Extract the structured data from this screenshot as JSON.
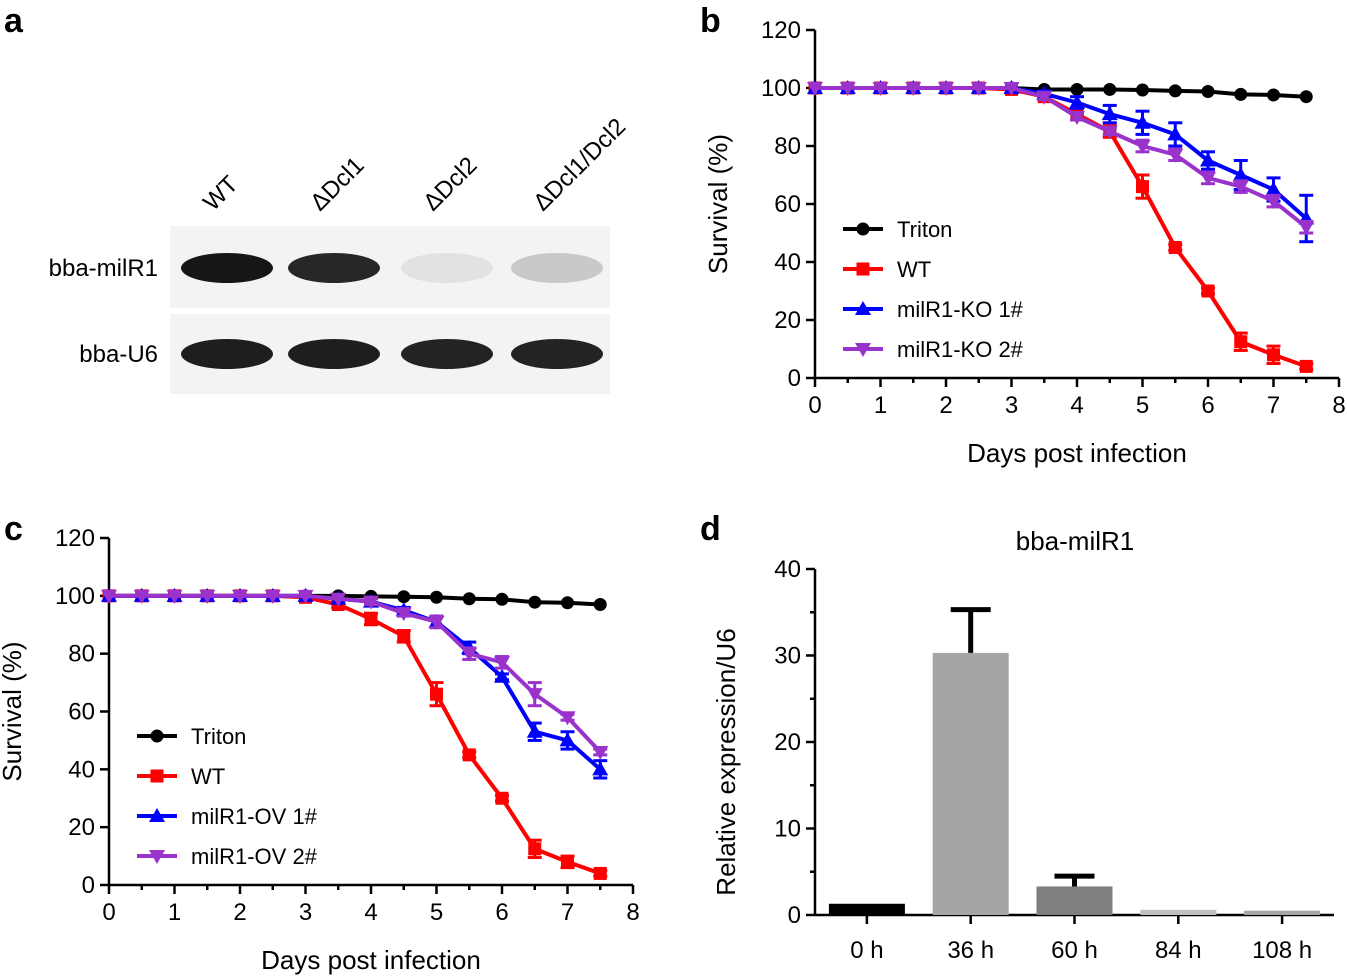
{
  "panel_a": {
    "letter": "a",
    "lanes": [
      "WT",
      "ΔDcl1",
      "ΔDcl2",
      "ΔDcl1/Dcl2"
    ],
    "rows": [
      {
        "label": "bba-milR1",
        "intensities": [
          0.95,
          0.88,
          0.12,
          0.22
        ]
      },
      {
        "label": "bba-U6",
        "intensities": [
          0.92,
          0.92,
          0.9,
          0.9
        ]
      }
    ]
  },
  "chart_data": [
    {
      "panel": "b",
      "type": "line",
      "title": "",
      "xlabel": "Days post infection",
      "ylabel": "Survival (%)",
      "xlim": [
        0,
        8
      ],
      "ylim": [
        0,
        120
      ],
      "xticks": [
        0,
        1,
        2,
        3,
        4,
        5,
        6,
        7,
        8
      ],
      "yticks": [
        0,
        20,
        40,
        60,
        80,
        100,
        120
      ],
      "legend_position": "left-middle",
      "x": [
        0,
        0.5,
        1,
        1.5,
        2,
        2.5,
        3,
        3.5,
        4,
        4.5,
        5,
        5.5,
        6,
        6.5,
        7,
        7.5
      ],
      "series": [
        {
          "name": "Triton",
          "color": "#000000",
          "marker": "circle",
          "values": [
            100,
            100,
            100,
            100,
            100,
            100,
            100,
            99.5,
            99.5,
            99.5,
            99.3,
            99,
            98.8,
            97.8,
            97.6,
            97
          ],
          "errors": [
            0,
            0,
            0,
            0,
            0,
            0,
            0,
            0,
            0,
            0,
            0,
            0,
            0,
            0,
            0,
            0
          ]
        },
        {
          "name": "WT",
          "color": "#ff0000",
          "marker": "square",
          "values": [
            100,
            100,
            100,
            100,
            100,
            100,
            99.5,
            97,
            91,
            85,
            66,
            45,
            30,
            12.5,
            8,
            4
          ],
          "errors": [
            0,
            0,
            0,
            0,
            0,
            0,
            0,
            1,
            2,
            2,
            4,
            1,
            1,
            3,
            3,
            1
          ]
        },
        {
          "name": "milR1-KO 1#",
          "color": "#0000ff",
          "marker": "triangle-up",
          "values": [
            100,
            100,
            100,
            100,
            100,
            100,
            100,
            98,
            95,
            91,
            88,
            84,
            75,
            70,
            65,
            55
          ],
          "errors": [
            0,
            0,
            0,
            0,
            0,
            0,
            0,
            1,
            2,
            3,
            4,
            4,
            3,
            5,
            4,
            8
          ]
        },
        {
          "name": "milR1-KO 2#",
          "color": "#9933cc",
          "marker": "triangle-down",
          "values": [
            100,
            100,
            100,
            100,
            100,
            100,
            100,
            97,
            90,
            85,
            80,
            77,
            69,
            66,
            61,
            52
          ],
          "errors": [
            0,
            0,
            0,
            0,
            0,
            0,
            0,
            1,
            1,
            1,
            2,
            2,
            2,
            2,
            2,
            2
          ]
        }
      ]
    },
    {
      "panel": "c",
      "type": "line",
      "title": "",
      "xlabel": "Days post infection",
      "ylabel": "Survival (%)",
      "xlim": [
        0,
        8
      ],
      "ylim": [
        0,
        120
      ],
      "xticks": [
        0,
        1,
        2,
        3,
        4,
        5,
        6,
        7,
        8
      ],
      "yticks": [
        0,
        20,
        40,
        60,
        80,
        100,
        120
      ],
      "legend_position": "left-middle",
      "x": [
        0,
        0.5,
        1,
        1.5,
        2,
        2.5,
        3,
        3.5,
        4,
        4.5,
        5,
        5.5,
        6,
        6.5,
        7,
        7.5
      ],
      "series": [
        {
          "name": "Triton",
          "color": "#000000",
          "marker": "circle",
          "values": [
            100,
            100,
            100,
            100,
            100,
            100,
            100,
            100,
            99.8,
            99.7,
            99.5,
            99,
            98.8,
            97.8,
            97.6,
            97
          ],
          "errors": [
            0,
            0,
            0,
            0,
            0,
            0,
            0,
            0,
            0,
            0,
            0,
            0,
            0,
            0,
            0,
            0
          ]
        },
        {
          "name": "WT",
          "color": "#ff0000",
          "marker": "square",
          "values": [
            100,
            100,
            100,
            100,
            100,
            100,
            99.5,
            97,
            92,
            86,
            66,
            45,
            30,
            12.5,
            8,
            4
          ],
          "errors": [
            0,
            0,
            0,
            0,
            0,
            0,
            0,
            1,
            2,
            2,
            4,
            1,
            1,
            3,
            2,
            1
          ]
        },
        {
          "name": "milR1-OV 1#",
          "color": "#0000ff",
          "marker": "triangle-up",
          "values": [
            100,
            100,
            100,
            100,
            100,
            100,
            100,
            99,
            98,
            95,
            91,
            82,
            72,
            53,
            50,
            40
          ],
          "errors": [
            0,
            0,
            0,
            0,
            0,
            0,
            0,
            0,
            1,
            1,
            2,
            2,
            1,
            3,
            3,
            3
          ]
        },
        {
          "name": "milR1-OV 2#",
          "color": "#9933cc",
          "marker": "triangle-down",
          "values": [
            100,
            100,
            100,
            100,
            100,
            100,
            100,
            99,
            98,
            94,
            91,
            80,
            77,
            66,
            58,
            46
          ],
          "errors": [
            0,
            0,
            0,
            0,
            0,
            0,
            0,
            0,
            1,
            1,
            2,
            2,
            2,
            4,
            1,
            1
          ]
        }
      ]
    },
    {
      "panel": "d",
      "type": "bar",
      "title": "bba-milR1",
      "xlabel": "",
      "ylabel": "Relative expression/U6",
      "ylim": [
        0,
        40
      ],
      "yticks": [
        0,
        10,
        20,
        30,
        40
      ],
      "categories": [
        "0 h",
        "36 h",
        "60 h",
        "84 h",
        "108 h"
      ],
      "values": [
        1.3,
        30.3,
        3.3,
        0.6,
        0.5
      ],
      "errors": [
        0,
        5,
        1.2,
        0,
        0
      ],
      "colors": [
        "#000000",
        "#a5a5a5",
        "#7f7f7f",
        "#c0c0c0",
        "#a5a5a5"
      ]
    }
  ]
}
